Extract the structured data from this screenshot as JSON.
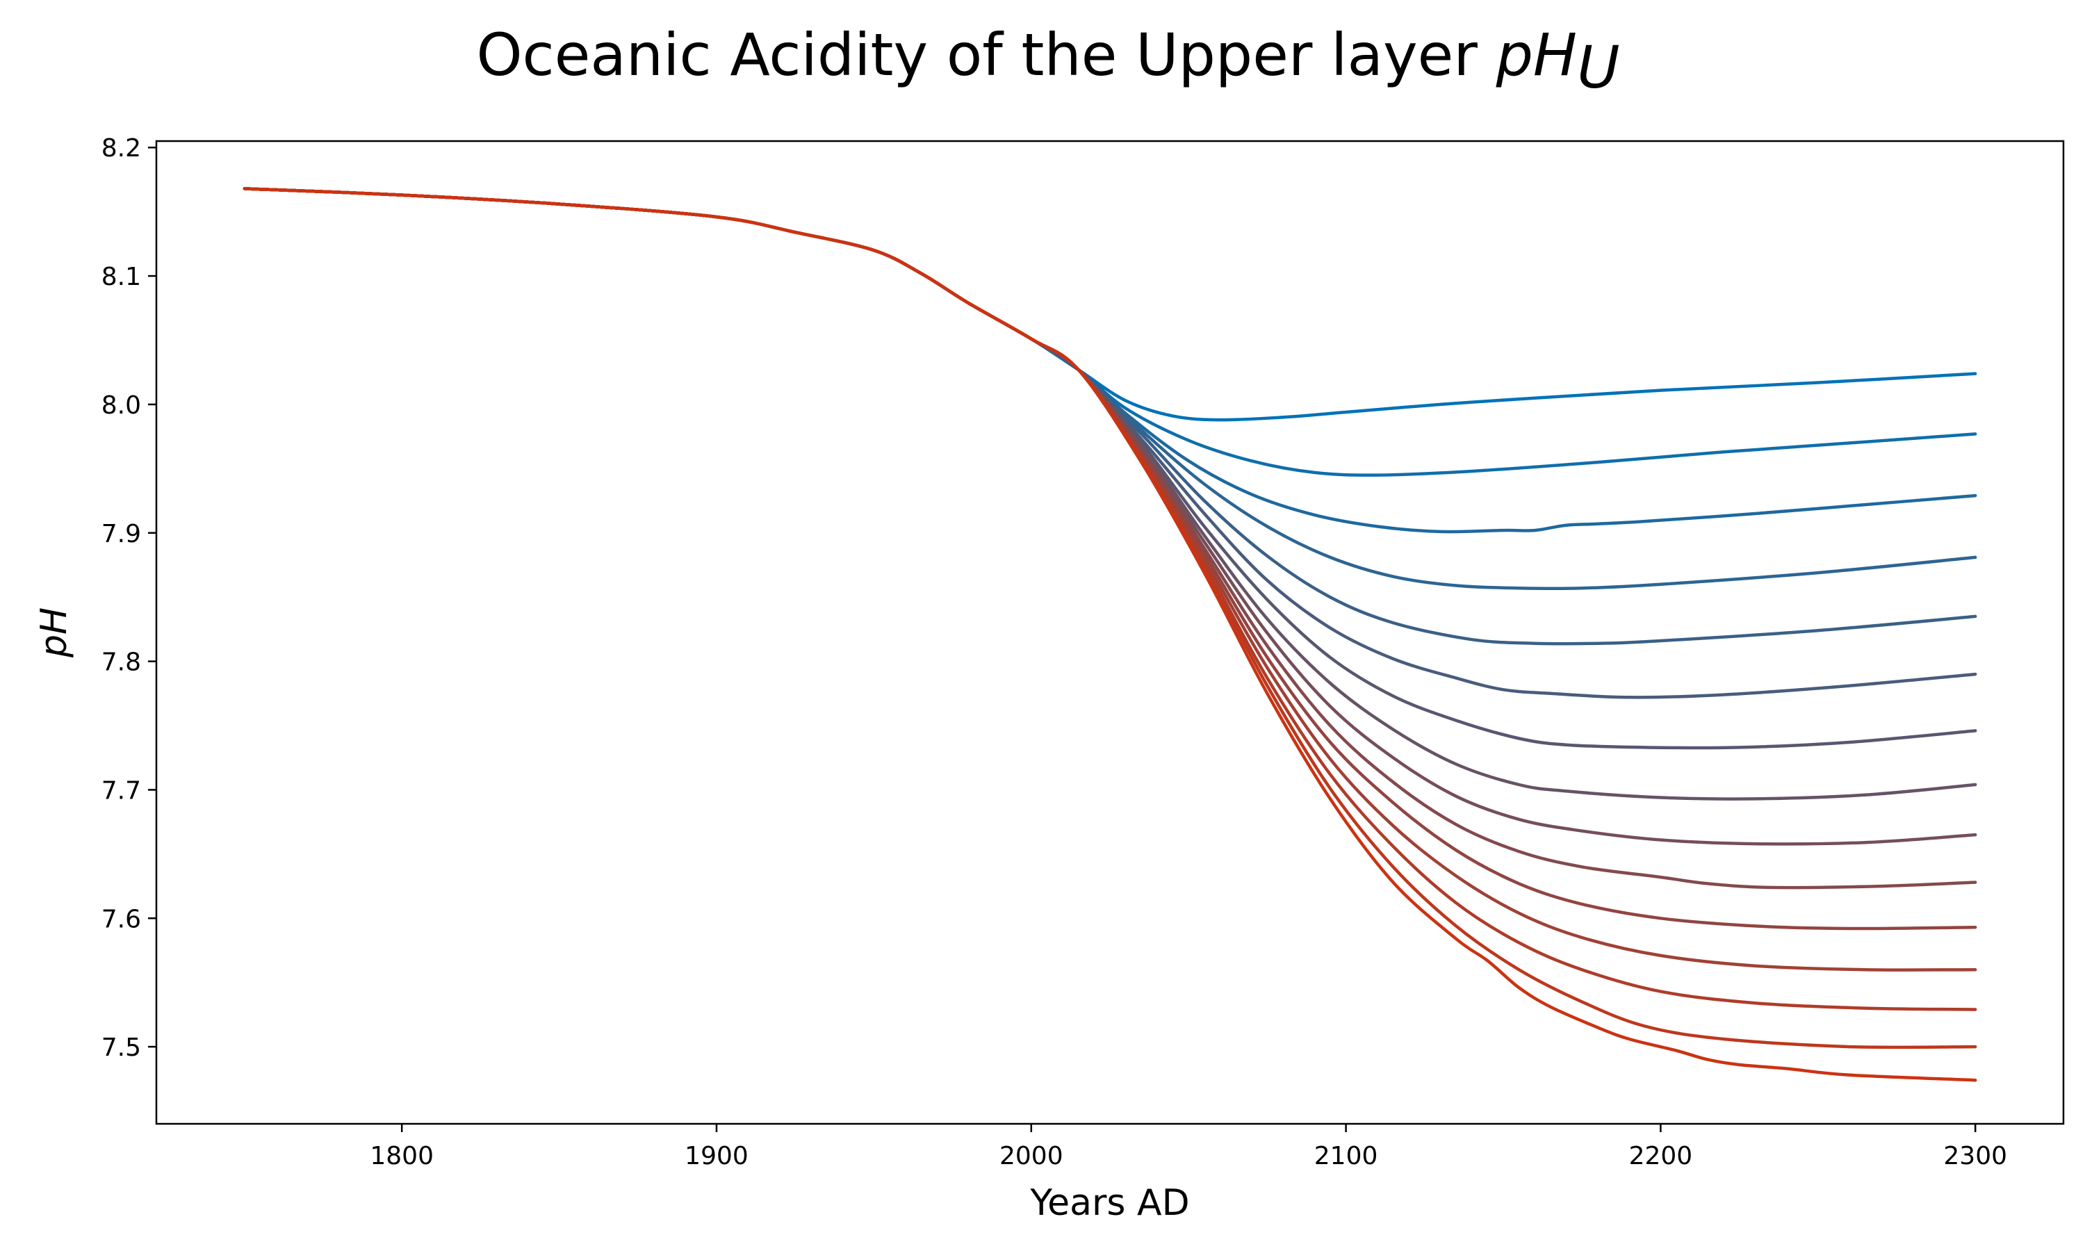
{
  "chart_data": {
    "type": "line",
    "title": "Oceanic Acidity of the Upper layer",
    "title_math": "pH",
    "title_math_subscript": "U",
    "xlabel": "Years AD",
    "ylabel": "pH",
    "xlim": [
      1722,
      2328
    ],
    "ylim": [
      7.44,
      8.205
    ],
    "xticks": [
      1800,
      1900,
      2000,
      2100,
      2200,
      2300
    ],
    "yticks": [
      7.5,
      7.6,
      7.7,
      7.8,
      7.9,
      8.0,
      8.1,
      8.2
    ],
    "xtick_labels": [
      "1800",
      "1900",
      "2000",
      "2100",
      "2200",
      "2300"
    ],
    "ytick_labels": [
      "7.5",
      "7.6",
      "7.7",
      "7.8",
      "7.9",
      "8.0",
      "8.1",
      "8.2"
    ],
    "grid": false,
    "color_start": "#0072b8",
    "color_end": "#cc3311",
    "common_history": {
      "x": [
        1750,
        1800,
        1850,
        1900,
        1925,
        1950,
        1965,
        1980,
        2000,
        2015
      ],
      "y": [
        8.168,
        8.163,
        8.156,
        8.146,
        8.134,
        8.12,
        8.102,
        8.079,
        8.051,
        8.027
      ]
    },
    "series": [
      {
        "x": [
          2015,
          2030,
          2045,
          2060,
          2080,
          2100,
          2130,
          2160,
          2200,
          2250,
          2300
        ],
        "y": [
          8.027,
          8.003,
          7.991,
          7.988,
          7.99,
          7.994,
          8.0,
          8.005,
          8.011,
          8.017,
          8.024
        ]
      },
      {
        "x": [
          2015,
          2030,
          2050,
          2070,
          2090,
          2110,
          2140,
          2180,
          2220,
          2260,
          2300
        ],
        "y": [
          8.027,
          7.997,
          7.972,
          7.956,
          7.947,
          7.945,
          7.948,
          7.955,
          7.963,
          7.97,
          7.977
        ]
      },
      {
        "x": [
          2015,
          2030,
          2050,
          2070,
          2090,
          2110,
          2130,
          2150,
          2160,
          2170,
          2180,
          2195,
          2230,
          2265,
          2300
        ],
        "y": [
          8.027,
          7.993,
          7.956,
          7.93,
          7.914,
          7.905,
          7.901,
          7.902,
          7.902,
          7.906,
          7.907,
          7.909,
          7.915,
          7.922,
          7.929
        ]
      },
      {
        "x": [
          2015,
          2035,
          2055,
          2075,
          2095,
          2115,
          2135,
          2155,
          2175,
          2200,
          2250,
          2300
        ],
        "y": [
          8.027,
          7.98,
          7.938,
          7.905,
          7.881,
          7.866,
          7.859,
          7.857,
          7.857,
          7.86,
          7.869,
          7.881
        ]
      },
      {
        "x": [
          2015,
          2035,
          2055,
          2075,
          2095,
          2115,
          2140,
          2160,
          2180,
          2200,
          2250,
          2300
        ],
        "y": [
          8.027,
          7.977,
          7.925,
          7.882,
          7.85,
          7.83,
          7.817,
          7.814,
          7.814,
          7.816,
          7.824,
          7.835
        ]
      },
      {
        "x": [
          2015,
          2035,
          2055,
          2075,
          2095,
          2115,
          2135,
          2150,
          2165,
          2190,
          2220,
          2260,
          2300
        ],
        "y": [
          8.027,
          7.973,
          7.915,
          7.863,
          7.826,
          7.802,
          7.787,
          7.778,
          7.775,
          7.772,
          7.774,
          7.781,
          7.79
        ]
      },
      {
        "x": [
          2015,
          2035,
          2055,
          2075,
          2095,
          2115,
          2135,
          2155,
          2170,
          2195,
          2225,
          2260,
          2300
        ],
        "y": [
          8.027,
          7.97,
          7.905,
          7.848,
          7.803,
          7.773,
          7.754,
          7.74,
          7.735,
          7.733,
          7.733,
          7.737,
          7.746
        ]
      },
      {
        "x": [
          2015,
          2035,
          2055,
          2075,
          2095,
          2115,
          2135,
          2155,
          2170,
          2200,
          2230,
          2265,
          2300
        ],
        "y": [
          8.027,
          7.968,
          7.898,
          7.833,
          7.783,
          7.747,
          7.72,
          7.704,
          7.699,
          7.694,
          7.693,
          7.696,
          7.704
        ]
      },
      {
        "x": [
          2015,
          2035,
          2055,
          2075,
          2095,
          2115,
          2135,
          2155,
          2175,
          2200,
          2230,
          2265,
          2300
        ],
        "y": [
          8.027,
          7.966,
          7.893,
          7.822,
          7.765,
          7.725,
          7.695,
          7.677,
          7.668,
          7.661,
          7.658,
          7.659,
          7.665
        ]
      },
      {
        "x": [
          2015,
          2035,
          2055,
          2075,
          2095,
          2115,
          2135,
          2155,
          2175,
          2200,
          2215,
          2235,
          2270,
          2300
        ],
        "y": [
          8.027,
          7.964,
          7.888,
          7.812,
          7.75,
          7.706,
          7.673,
          7.652,
          7.64,
          7.632,
          7.627,
          7.624,
          7.625,
          7.628
        ]
      },
      {
        "x": [
          2015,
          2035,
          2055,
          2075,
          2095,
          2115,
          2135,
          2155,
          2175,
          2200,
          2230,
          2260,
          2300
        ],
        "y": [
          8.027,
          7.962,
          7.884,
          7.803,
          7.737,
          7.69,
          7.653,
          7.627,
          7.611,
          7.6,
          7.594,
          7.592,
          7.593
        ]
      },
      {
        "x": [
          2015,
          2035,
          2055,
          2075,
          2095,
          2115,
          2135,
          2155,
          2175,
          2200,
          2230,
          2265,
          2300
        ],
        "y": [
          8.027,
          7.96,
          7.88,
          7.795,
          7.724,
          7.672,
          7.633,
          7.604,
          7.585,
          7.571,
          7.563,
          7.56,
          7.56
        ]
      },
      {
        "x": [
          2015,
          2035,
          2055,
          2075,
          2095,
          2115,
          2135,
          2155,
          2175,
          2200,
          2230,
          2265,
          2300
        ],
        "y": [
          8.027,
          7.958,
          7.876,
          7.787,
          7.712,
          7.656,
          7.612,
          7.581,
          7.56,
          7.543,
          7.534,
          7.53,
          7.529
        ]
      },
      {
        "x": [
          2015,
          2035,
          2055,
          2075,
          2095,
          2115,
          2135,
          2155,
          2175,
          2195,
          2220,
          2260,
          2300
        ],
        "y": [
          8.027,
          7.957,
          7.873,
          7.781,
          7.701,
          7.64,
          7.594,
          7.56,
          7.535,
          7.516,
          7.506,
          7.5,
          7.5
        ]
      },
      {
        "x": [
          2015,
          2035,
          2055,
          2075,
          2095,
          2115,
          2135,
          2145,
          2155,
          2165,
          2180,
          2190,
          2205,
          2215,
          2225,
          2240,
          2260,
          2300
        ],
        "y": [
          8.027,
          7.955,
          7.869,
          7.775,
          7.693,
          7.628,
          7.584,
          7.567,
          7.546,
          7.531,
          7.515,
          7.506,
          7.497,
          7.49,
          7.486,
          7.483,
          7.478,
          7.474
        ]
      }
    ]
  }
}
